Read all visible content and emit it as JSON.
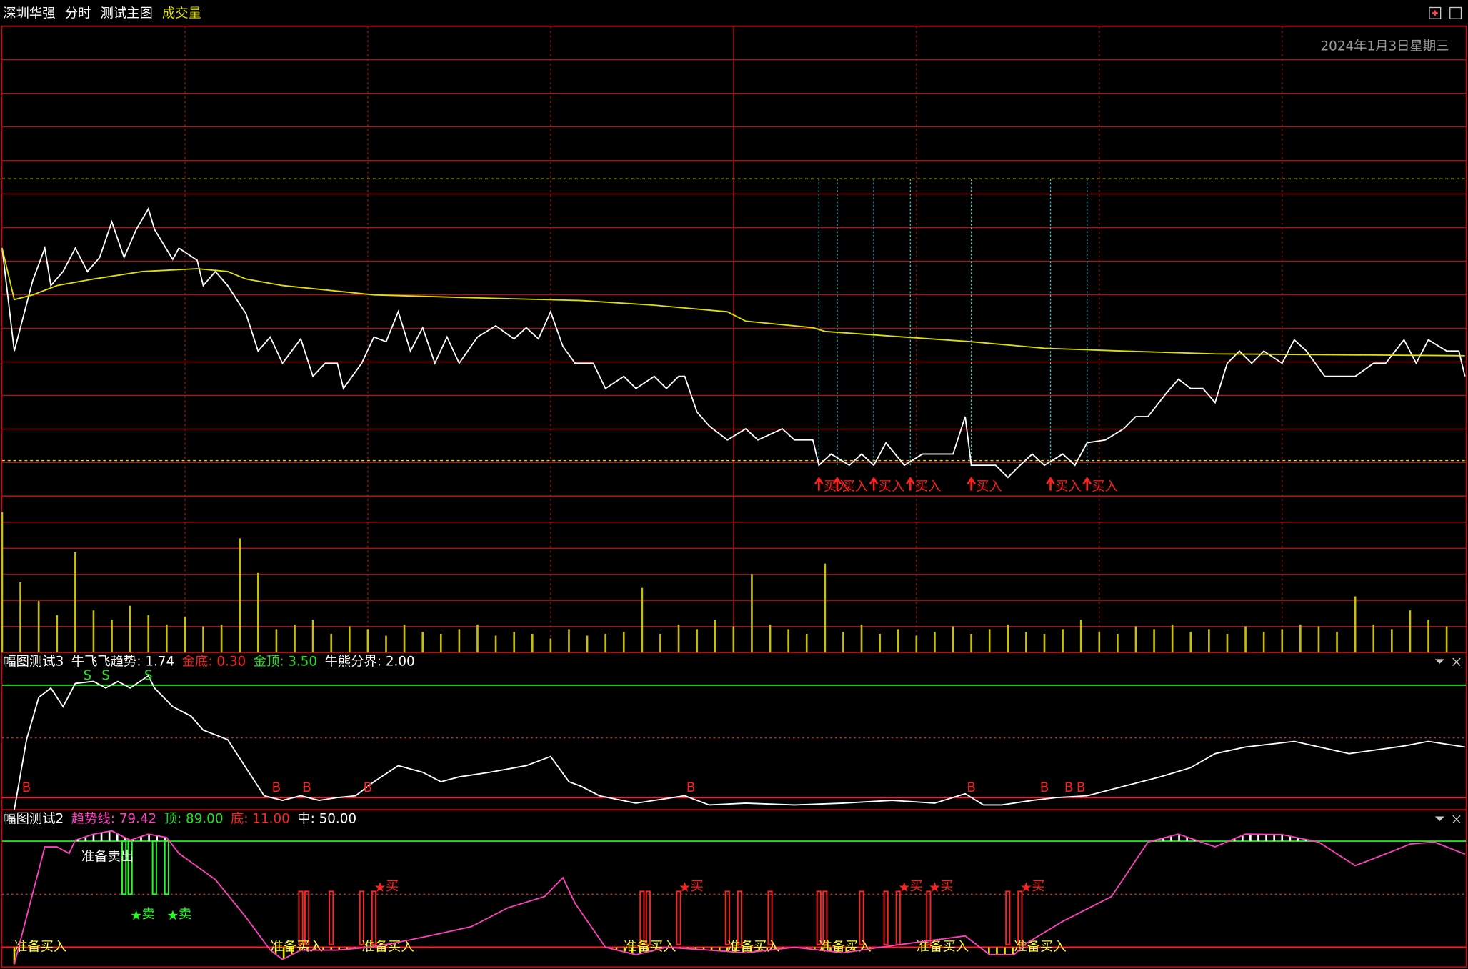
{
  "header": {
    "stock": "深圳华强",
    "mode": "分时",
    "main": "测试主图",
    "volume": "成交量"
  },
  "date": "2024年1月3日星期三",
  "chart_data": [
    {
      "type": "line",
      "xlim": [
        0,
        240
      ],
      "ylim": [
        0,
        502
      ],
      "series": [
        {
          "color": "#ffffff",
          "x": [
            0,
            2,
            5,
            7,
            8,
            10,
            12,
            14,
            16,
            18,
            20,
            22,
            24,
            25,
            28,
            29,
            32,
            33,
            35,
            37,
            40,
            42,
            44,
            46,
            49,
            51,
            53,
            55,
            56,
            59,
            61,
            63,
            65,
            67,
            69,
            71,
            73,
            75,
            78,
            81,
            84,
            86,
            88,
            90,
            92,
            94,
            97,
            99,
            102,
            104,
            107,
            109,
            111,
            112,
            114,
            116,
            119,
            122,
            124,
            128,
            130,
            133,
            134,
            136,
            139,
            141,
            143,
            145,
            148,
            151,
            156,
            158,
            159,
            163,
            165,
            167,
            169,
            171,
            174,
            176,
            178,
            181,
            184,
            186,
            188,
            191,
            193,
            195,
            197,
            199,
            201,
            203,
            205,
            207,
            210,
            212,
            214,
            217,
            222,
            225,
            227,
            230,
            232,
            234,
            237,
            239,
            240
          ],
          "values": [
            265,
            155,
            230,
            265,
            225,
            240,
            265,
            240,
            255,
            293,
            255,
            285,
            307,
            285,
            253,
            265,
            252,
            225,
            240,
            225,
            195,
            155,
            170,
            142,
            168,
            128,
            142,
            142,
            115,
            142,
            170,
            165,
            197,
            155,
            180,
            142,
            170,
            142,
            170,
            182,
            168,
            180,
            168,
            197,
            160,
            142,
            142,
            115,
            128,
            115,
            128,
            115,
            128,
            128,
            90,
            75,
            60,
            72,
            60,
            72,
            60,
            60,
            33,
            45,
            33,
            45,
            33,
            57,
            33,
            45,
            45,
            85,
            33,
            33,
            20,
            33,
            45,
            33,
            45,
            33,
            57,
            60,
            72,
            85,
            85,
            110,
            125,
            115,
            115,
            100,
            142,
            155,
            142,
            155,
            142,
            167,
            155,
            128,
            128,
            142,
            142,
            167,
            142,
            167,
            155,
            155,
            128
          ]
        },
        {
          "color": "#e0e000",
          "x": [
            0,
            2,
            5,
            9,
            15,
            23,
            32,
            37,
            40,
            46,
            61,
            77,
            95,
            107,
            119,
            122,
            133,
            135,
            148,
            159,
            171,
            184,
            199,
            240
          ],
          "values": [
            265,
            210,
            215,
            225,
            232,
            240,
            243,
            240,
            232,
            225,
            215,
            212,
            209,
            204,
            197,
            187,
            180,
            176,
            170,
            165,
            158,
            155,
            152,
            150
          ]
        }
      ],
      "hlines": [
        {
          "value": 339,
          "color": "#e0e000"
        },
        {
          "value": 38,
          "color": "#e0e000"
        }
      ],
      "signals": {
        "x": [
          134,
          137,
          143,
          149,
          159,
          172,
          178
        ],
        "label": "买入",
        "color": "#ff2020",
        "line_color": "#40c8d0"
      }
    },
    {
      "type": "bar",
      "xlim": [
        0,
        240
      ],
      "ylim": [
        0,
        167
      ],
      "color": "#c8c000",
      "x": [
        0,
        3,
        6,
        9,
        12,
        15,
        18,
        21,
        24,
        27,
        30,
        33,
        36,
        39,
        42,
        45,
        48,
        51,
        54,
        57,
        60,
        63,
        66,
        69,
        72,
        75,
        78,
        81,
        84,
        87,
        90,
        93,
        96,
        99,
        102,
        105,
        108,
        111,
        114,
        117,
        120,
        123,
        126,
        129,
        132,
        135,
        138,
        141,
        144,
        147,
        150,
        153,
        156,
        159,
        162,
        165,
        168,
        171,
        174,
        177,
        180,
        183,
        186,
        189,
        192,
        195,
        198,
        201,
        204,
        207,
        210,
        213,
        216,
        219,
        222,
        225,
        228,
        231,
        234,
        237
      ],
      "values": [
        150,
        75,
        55,
        40,
        107,
        45,
        35,
        50,
        40,
        30,
        38,
        28,
        30,
        122,
        85,
        25,
        30,
        35,
        20,
        28,
        25,
        18,
        30,
        22,
        20,
        25,
        30,
        18,
        22,
        20,
        15,
        25,
        18,
        20,
        22,
        69,
        20,
        30,
        25,
        35,
        28,
        84,
        30,
        25,
        20,
        95,
        22,
        30,
        20,
        25,
        18,
        22,
        28,
        20,
        25,
        30,
        22,
        20,
        25,
        35,
        22,
        20,
        28,
        25,
        30,
        22,
        25,
        20,
        28,
        22,
        25,
        30,
        28,
        22,
        60,
        30,
        25,
        45,
        35,
        28
      ]
    },
    {
      "type": "line",
      "title": "幅图测试3",
      "xlim": [
        0,
        240
      ],
      "ylim": [
        -0.05,
        4.43
      ],
      "series": [
        {
          "color": "#ffffff",
          "x": [
            2,
            4,
            6,
            8,
            10,
            12,
            15,
            17,
            19,
            21,
            24,
            25,
            28,
            31,
            33,
            37,
            40,
            43,
            46,
            49,
            52,
            55,
            58,
            61,
            65,
            69,
            72,
            75,
            80,
            86,
            90,
            93,
            95,
            98,
            104,
            112,
            116,
            122,
            130,
            138,
            146,
            153,
            158,
            161,
            164,
            169,
            173,
            178,
            184,
            190,
            195,
            199,
            204,
            212,
            221,
            230,
            234,
            240
          ],
          "values": [
            -0.05,
            1.95,
            3.15,
            3.42,
            2.89,
            3.55,
            3.61,
            3.42,
            3.61,
            3.42,
            3.77,
            3.42,
            2.89,
            2.62,
            2.22,
            1.95,
            1.15,
            0.35,
            0.22,
            0.35,
            0.22,
            0.3,
            0.35,
            0.75,
            1.21,
            1.02,
            0.75,
            0.89,
            1.02,
            1.21,
            1.47,
            0.75,
            0.62,
            0.35,
            0.14,
            0.35,
            0.09,
            0.14,
            0.09,
            0.14,
            0.22,
            0.14,
            0.41,
            0.09,
            0.09,
            0.22,
            0.3,
            0.35,
            0.62,
            0.89,
            1.15,
            1.55,
            1.74,
            1.9,
            1.55,
            1.77,
            1.9,
            1.74
          ]
        }
      ],
      "legend": [
        {
          "value": 1.74,
          "label": "牛飞飞趋势: 1.74",
          "color": "#ffffff"
        }
      ],
      "levels": [
        {
          "value": 0.3,
          "label": "金底: 0.30",
          "color": "#ff2020",
          "line_color": "#ff2020"
        },
        {
          "value": 3.5,
          "label": "金顶: 3.50",
          "color": "#20e020",
          "line_color": "#20e020"
        },
        {
          "value": 2.0,
          "label": "牛熊分界: 2.00",
          "color": "#ffffff",
          "line_color": "#c03030",
          "style": "dotted"
        }
      ],
      "markers": [
        {
          "label": "B",
          "color": "#ff2020",
          "x": [
            4,
            45,
            50,
            60,
            113,
            159,
            171,
            175,
            177
          ]
        },
        {
          "label": "S",
          "color": "#20e020",
          "x": [
            14,
            17,
            24
          ]
        }
      ]
    },
    {
      "type": "line",
      "title": "幅图测试2",
      "xlim": [
        0,
        240
      ],
      "ylim": [
        -5,
        112
      ],
      "series": [
        {
          "color": "#ff40c0",
          "x": [
            2,
            7,
            9,
            11,
            12,
            15,
            18,
            21,
            24,
            27,
            29,
            35,
            40,
            44,
            46,
            49,
            55,
            60,
            64,
            70,
            77,
            83,
            89,
            92,
            94,
            99,
            104,
            109,
            116,
            122,
            130,
            138,
            144,
            152,
            158,
            162,
            166,
            168,
            174,
            182,
            188,
            193,
            199,
            204,
            210,
            216,
            222,
            228,
            231,
            235,
            240
          ],
          "values": [
            -1.4,
            84.8,
            84.8,
            80.0,
            89.7,
            94.2,
            96.6,
            89.7,
            94.2,
            91.7,
            80.0,
            60.7,
            33.1,
            8.9,
            2.0,
            8.9,
            8.9,
            11,
            13.8,
            19.3,
            26.2,
            40.0,
            48.3,
            62.1,
            43.4,
            11,
            5.5,
            11,
            8.9,
            6.9,
            11,
            6.9,
            11,
            15.8,
            19.3,
            5.5,
            5.5,
            13.8,
            30,
            48.3,
            88.3,
            94.2,
            84.8,
            94.2,
            93.8,
            88.3,
            71.0,
            81.4,
            86.9,
            88.3,
            79.42
          ]
        }
      ],
      "legend": [
        {
          "value": 79.42,
          "label": "趋势线: 79.42",
          "color": "#ff40c0"
        }
      ],
      "levels": [
        {
          "value": 89,
          "label": "顶: 89.00",
          "color": "#20e020",
          "line_color": "#20e020"
        },
        {
          "value": 11,
          "label": "底: 11.00",
          "color": "#ff2020",
          "line_color": "#ff2020"
        },
        {
          "value": 50,
          "label": "中: 50.00",
          "color": "#ffffff",
          "line_color": "#c03030",
          "style": "dotted"
        }
      ],
      "buy_bars": {
        "x": [
          49,
          50,
          54,
          59,
          61,
          105,
          106,
          111,
          119,
          121,
          126,
          134,
          135,
          141,
          145,
          147,
          152,
          165,
          167
        ],
        "color": "#ff2020"
      },
      "sell_bars": {
        "x": [
          20,
          21,
          25,
          27
        ],
        "color": "#20ff20"
      },
      "annotations": [
        {
          "text": "准备买入",
          "color": "#ffff40",
          "x": [
            2,
            44,
            59,
            102,
            119,
            134,
            150,
            166
          ]
        },
        {
          "text": "准备卖出",
          "color": "#ffffff",
          "x": [
            13
          ]
        },
        {
          "text": "买",
          "color": "#ff2020",
          "x": [
            62,
            112,
            148,
            153,
            168
          ]
        },
        {
          "text": "卖",
          "color": "#20ff20",
          "x": [
            22,
            28
          ]
        }
      ]
    }
  ]
}
